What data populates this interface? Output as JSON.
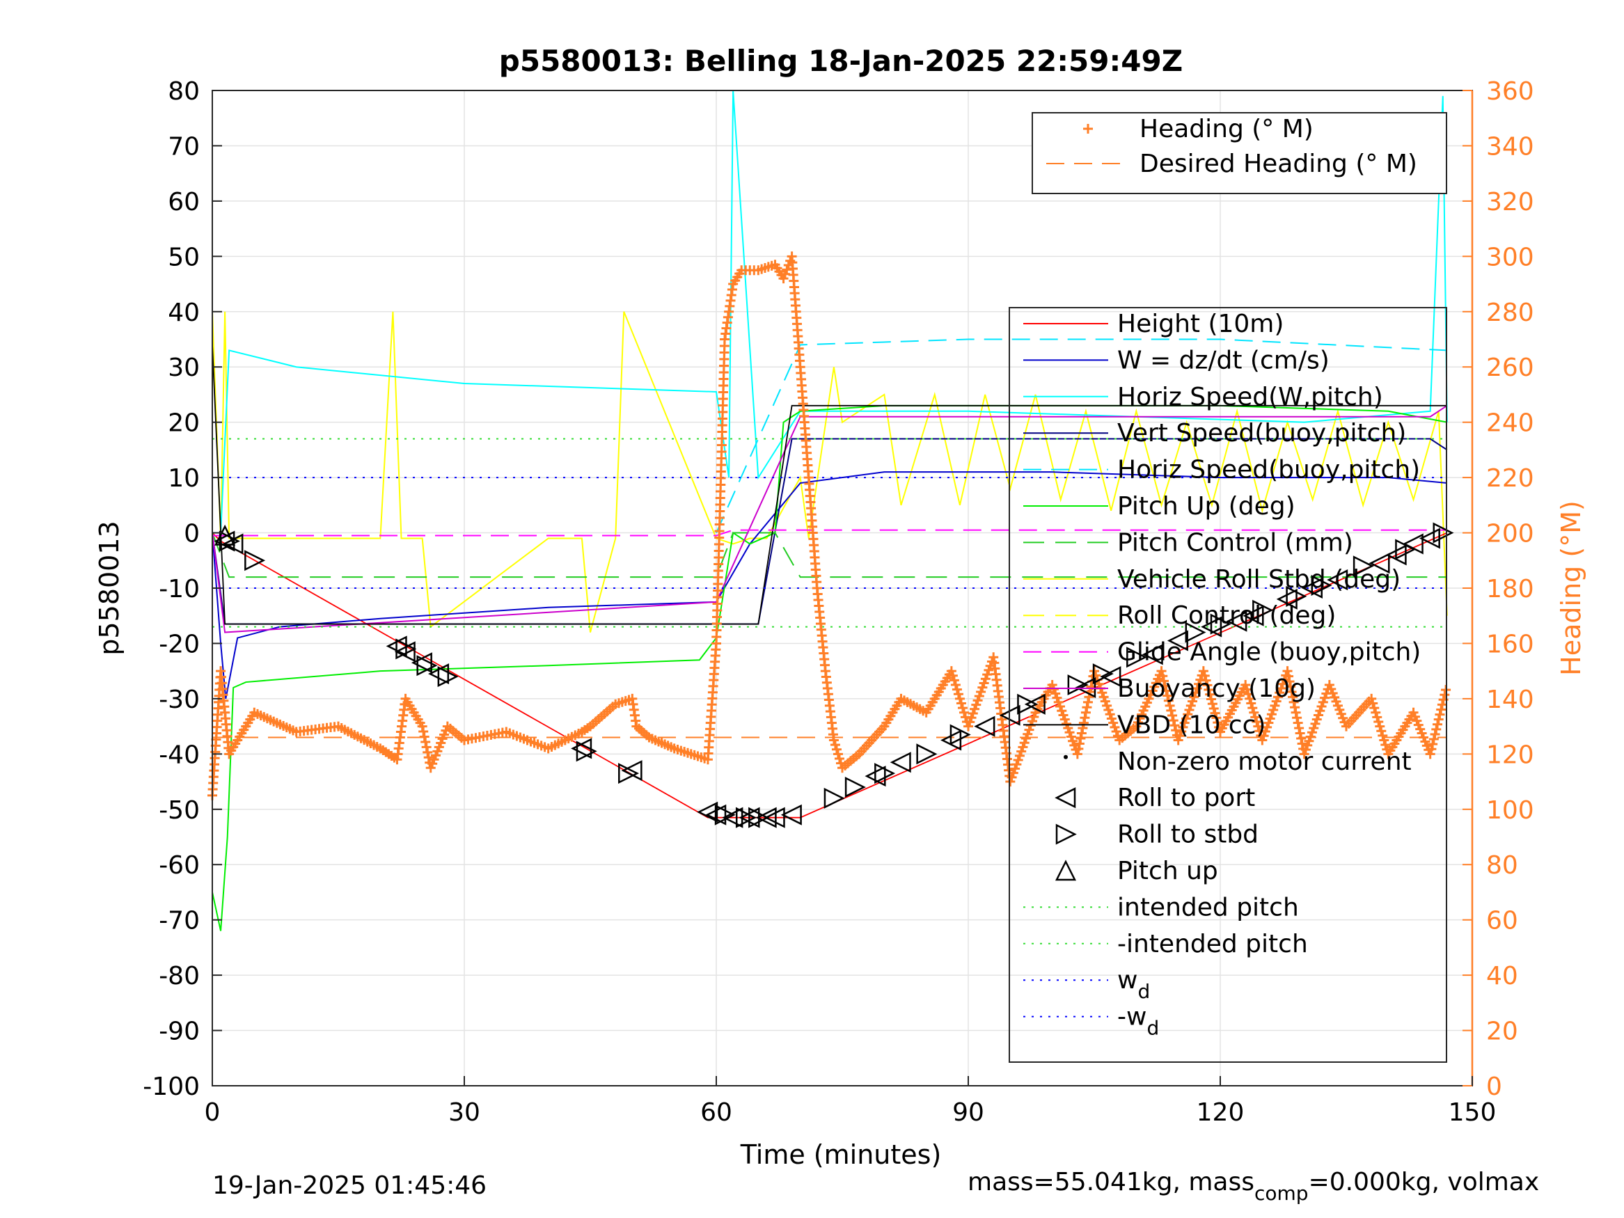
{
  "chart_data": {
    "type": "line",
    "title": "p5580013: Belling 18-Jan-2025 22:59:49Z",
    "xlabel": "Time (minutes)",
    "ylabel": "p5580013",
    "ylabel_right": "Heading (°M)",
    "xlim": [
      0,
      150
    ],
    "ylim": [
      -100,
      80
    ],
    "ylim_right": [
      0,
      360
    ],
    "xticks": [
      "0",
      "30",
      "60",
      "90",
      "120",
      "150"
    ],
    "yticks": [
      "80",
      "70",
      "60",
      "50",
      "40",
      "30",
      "20",
      "10",
      "0",
      "-10",
      "-20",
      "-30",
      "-40",
      "-50",
      "-60",
      "-70",
      "-80",
      "-90",
      "-100"
    ],
    "yticks_right": [
      "360",
      "340",
      "320",
      "300",
      "280",
      "260",
      "240",
      "220",
      "200",
      "180",
      "160",
      "140",
      "120",
      "100",
      "80",
      "60",
      "40",
      "20",
      "0"
    ],
    "grid": true,
    "colors": {
      "height": "#ff0000",
      "w": "#0000cc",
      "horiz_speed_w": "#00ffff",
      "vert_speed_buoy": "#000080",
      "horiz_speed_buoy": "#00e5ff",
      "pitch": "#00ee00",
      "pitch_control": "#22cc22",
      "roll": "#ffff00",
      "roll_control": "#ffff00",
      "glide_angle": "#ff00ff",
      "buoyancy": "#cc00cc",
      "vbd": "#000000",
      "heading": "#ff7f27",
      "intended_pitch": "#33dd33",
      "wd": "#0000ff",
      "axis_right": "#ff7f27"
    },
    "legend_top": {
      "placement": "top-right",
      "entries": [
        "Heading (° M)",
        "Desired Heading (° M)"
      ]
    },
    "legend_main": {
      "placement": "right",
      "entries": [
        "Height (10m)",
        "W = dz/dt (cm/s)",
        "Horiz Speed(W,pitch)",
        "Vert Speed(buoy,pitch)",
        "Horiz Speed(buoy,pitch)",
        "Pitch Up (deg)",
        "Pitch Control (mm)",
        "Vehicle Roll Stbd (deg)",
        "Roll Control (deg)",
        "Glide Angle (buoy,pitch)",
        "Buoyancy (10g)",
        "VBD (10 cc)",
        "Non-zero motor current",
        "Roll to port",
        "Roll to stbd",
        "Pitch up",
        "intended pitch",
        "-intended pitch",
        "w",
        "-w"
      ],
      "subscript": "d"
    },
    "series": [
      {
        "name": "Height (10m)",
        "x": [
          0,
          1,
          59,
          70,
          147
        ],
        "y": [
          0,
          -1.5,
          -51.5,
          -51.5,
          0
        ]
      },
      {
        "name": "W = dz/dt (cm/s)",
        "x": [
          0,
          1,
          1.6,
          3,
          8,
          20,
          40,
          60,
          64,
          70,
          80,
          100,
          120,
          140,
          147
        ],
        "y": [
          0,
          -20,
          -30,
          -19,
          -17,
          -15.5,
          -13.5,
          -12.5,
          -2,
          9,
          11,
          11,
          10,
          10,
          9
        ]
      },
      {
        "name": "Horiz Speed(W,pitch)",
        "x": [
          0,
          1,
          2,
          10,
          30,
          50,
          60,
          61.5,
          62,
          65,
          70,
          90,
          110,
          130,
          145,
          146.5,
          147
        ],
        "y": [
          0,
          0,
          33,
          30,
          27,
          26,
          25.5,
          10,
          80,
          10,
          22,
          22,
          21,
          20,
          22,
          79,
          20
        ]
      },
      {
        "name": "Vert Speed(buoy,pitch)",
        "x": [
          0,
          1.5,
          65,
          69,
          75,
          100,
          145,
          147
        ],
        "y": [
          0,
          -16.5,
          -16.5,
          17,
          17,
          17,
          17,
          15
        ]
      },
      {
        "name": "Horiz Speed(buoy,pitch)",
        "x": [
          60,
          70,
          90,
          120,
          147
        ],
        "y": [
          0,
          34,
          35,
          35,
          33
        ]
      },
      {
        "name": "Pitch Up (deg)",
        "x": [
          0,
          1,
          1.8,
          2.5,
          4,
          20,
          40,
          58,
          60,
          62,
          64,
          67,
          68,
          70,
          80,
          100,
          120,
          140,
          147
        ],
        "y": [
          -65,
          -72,
          -55,
          -28,
          -27,
          -25,
          -24,
          -23,
          -19,
          0,
          -2,
          0,
          20,
          22,
          23,
          23,
          23,
          22,
          20
        ]
      },
      {
        "name": "Pitch Control (mm)",
        "x": [
          0,
          2,
          60,
          62,
          67,
          70,
          147
        ],
        "y": [
          0,
          -8,
          -8,
          0,
          0,
          -8,
          -8
        ]
      },
      {
        "name": "Buoyancy (10g)",
        "x": [
          0,
          1.5,
          60,
          70,
          145,
          147
        ],
        "y": [
          0,
          -18,
          -12.5,
          21,
          21,
          23
        ]
      },
      {
        "name": "VBD (10 cc)",
        "x": [
          0,
          1.5,
          65,
          69,
          147
        ],
        "y": [
          34,
          -16.5,
          -16.5,
          23,
          23
        ]
      },
      {
        "name": "Glide Angle (buoy,pitch)",
        "x": [
          0,
          60,
          62,
          147
        ],
        "y": [
          -0.5,
          -0.5,
          0.5,
          0.5
        ]
      },
      {
        "name": "Heading (° M)",
        "x": [
          0,
          1,
          2,
          5,
          10,
          15,
          20,
          22,
          23,
          25,
          26,
          28,
          30,
          35,
          40,
          44,
          45,
          48,
          50,
          50.5,
          52,
          55,
          59,
          60,
          61,
          62,
          63,
          65,
          67,
          68,
          69,
          70,
          72,
          73,
          74,
          75,
          77,
          80,
          82,
          85,
          88,
          90,
          93,
          95,
          98,
          100,
          103,
          105,
          108,
          110,
          113,
          115,
          118,
          120,
          123,
          125,
          128,
          130,
          133,
          135,
          138,
          140,
          143,
          145,
          147
        ],
        "y": [
          105,
          150,
          120,
          135,
          128,
          130,
          122,
          118,
          140,
          130,
          115,
          130,
          125,
          128,
          122,
          128,
          130,
          138,
          140,
          130,
          126,
          122,
          118,
          160,
          270,
          290,
          295,
          295,
          297,
          292,
          300,
          260,
          180,
          150,
          125,
          115,
          120,
          130,
          140,
          135,
          150,
          130,
          155,
          110,
          135,
          145,
          120,
          150,
          125,
          130,
          150,
          125,
          150,
          128,
          145,
          125,
          150,
          120,
          145,
          130,
          140,
          120,
          135,
          120,
          145
        ]
      },
      {
        "name": "Desired Heading (° M)",
        "x": [
          0,
          147
        ],
        "y": [
          126,
          126
        ]
      },
      {
        "name": "intended pitch",
        "x": [
          0,
          147
        ],
        "y": [
          17,
          17
        ]
      },
      {
        "name": "-intended pitch",
        "x": [
          0,
          147
        ],
        "y": [
          -17,
          -17
        ]
      },
      {
        "name": "w",
        "x": [
          0,
          147
        ],
        "y": [
          10,
          10
        ]
      },
      {
        "name": "-w",
        "x": [
          0,
          147
        ],
        "y": [
          -10,
          -10
        ]
      }
    ],
    "markers": {
      "roll_to_port": {
        "x": [
          1.5,
          2.5,
          22,
          23,
          25,
          27,
          44,
          50,
          59,
          60,
          62,
          64,
          66,
          67,
          69,
          79,
          82,
          88,
          92,
          95,
          98,
          104,
          107,
          112,
          115,
          119,
          122,
          124,
          128,
          131,
          134,
          139,
          141,
          143,
          145
        ],
        "y": [
          -1.5,
          -2,
          -20.5,
          -21.5,
          -23.5,
          -25.5,
          -39,
          -43,
          -50.5,
          -51,
          -51.5,
          -51.5,
          -51.5,
          -51.5,
          -51,
          -44,
          -41.5,
          -37.5,
          -35,
          -33,
          -31,
          -28,
          -26,
          -22,
          -19.5,
          -17,
          -16,
          -15,
          -12,
          -10,
          -8.5,
          -5.5,
          -4,
          -2,
          -1
        ]
      },
      "roll_to_stbd": {
        "x": [
          2,
          5,
          23,
          25.5,
          28,
          44.5,
          49.5,
          61,
          63.5,
          65,
          74,
          76.5,
          80,
          85,
          89,
          97,
          103,
          106,
          110,
          117,
          120,
          125,
          129,
          132,
          137,
          142,
          146.5
        ],
        "y": [
          -1.5,
          -5,
          -21,
          -24,
          -26,
          -39.5,
          -43.5,
          -51,
          -51.5,
          -51.5,
          -48,
          -46,
          -43.5,
          -40,
          -36.5,
          -31,
          -27.5,
          -25.5,
          -22.5,
          -18,
          -16.5,
          -14,
          -11.5,
          -9.5,
          -6,
          -3,
          0
        ]
      },
      "pitch_up": {
        "x": [
          1.5
        ],
        "y": [
          -0.5
        ]
      }
    },
    "roll_series": {
      "name": "Vehicle Roll Stbd (deg)",
      "x": [
        0,
        1,
        1.5,
        2,
        20,
        21.5,
        22.5,
        25,
        26,
        40,
        44,
        45,
        48,
        49,
        60,
        62,
        64,
        66,
        70,
        71,
        74,
        75,
        80,
        82,
        86,
        89,
        92,
        95,
        98,
        101,
        104,
        107,
        110,
        113,
        116,
        119,
        122,
        125,
        128,
        131,
        134,
        137,
        140,
        143,
        146,
        147
      ],
      "y": [
        40,
        -1,
        40,
        -1,
        -1,
        40,
        -1,
        -1,
        -17,
        -1,
        -1,
        -18,
        -1,
        40,
        -1,
        -2,
        -1,
        -1,
        10,
        -1,
        30,
        20,
        25,
        5,
        25,
        5,
        25,
        8,
        25,
        6,
        22,
        4,
        22,
        5,
        20,
        5,
        22,
        4,
        20,
        6,
        22,
        5,
        20,
        6,
        22,
        -15
      ]
    },
    "annotations": {
      "timestamp": "19-Jan-2025 01:45:46",
      "mass_text": "mass=55.041kg, mass",
      "mass_sub": "comp",
      "mass_rest": "=0.000kg, volmax"
    }
  }
}
